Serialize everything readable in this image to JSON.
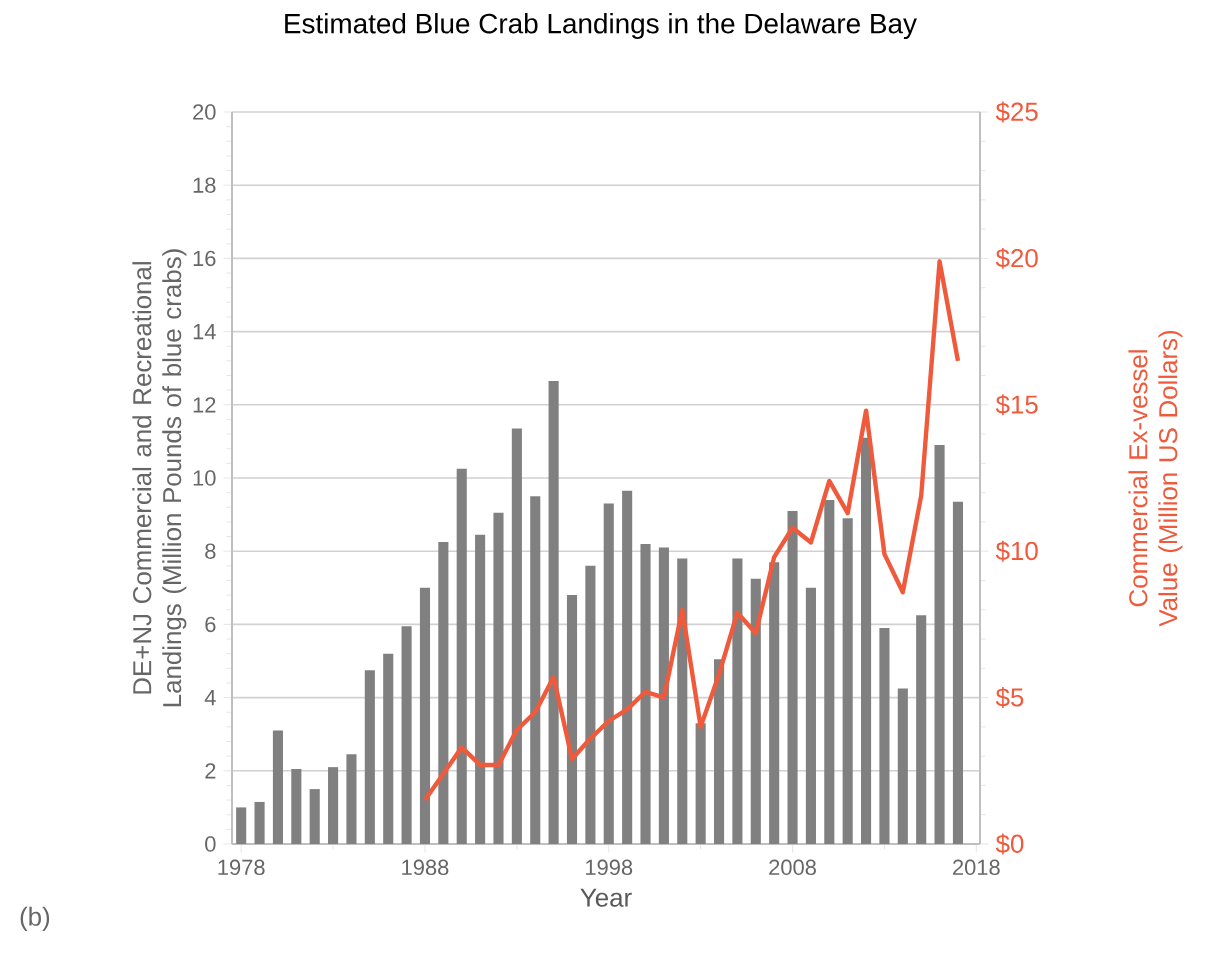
{
  "chart_data": {
    "type": "bar",
    "title": "Estimated Blue Crab Landings in the Delaware Bay",
    "xlabel": "Year",
    "ylabel": "DE+NJ Commercial and Recreational Landings (Million Pounds of blue crabs)",
    "y2label": "Commercial Ex-vessel Value (Million US Dollars)",
    "annotations": [
      "(b)"
    ],
    "x": [
      1978,
      1979,
      1980,
      1981,
      1982,
      1983,
      1984,
      1985,
      1986,
      1987,
      1988,
      1989,
      1990,
      1991,
      1992,
      1993,
      1994,
      1995,
      1996,
      1997,
      1998,
      1999,
      2000,
      2001,
      2002,
      2003,
      2004,
      2005,
      2006,
      2007,
      2008,
      2009,
      2010,
      2011,
      2012,
      2013,
      2014,
      2015,
      2016,
      2017
    ],
    "series": [
      {
        "color": "#808080",
        "values": [
          1.0,
          1.15,
          3.1,
          2.05,
          1.5,
          2.1,
          2.45,
          4.75,
          5.2,
          5.95,
          7.0,
          8.25,
          10.25,
          8.45,
          9.05,
          11.35,
          9.5,
          12.65,
          6.8,
          7.6,
          9.3,
          9.65,
          8.2,
          8.1,
          7.8,
          3.3,
          5.05,
          7.8,
          7.25,
          7.7,
          9.1,
          7.0,
          9.4,
          8.9,
          11.1,
          5.9,
          4.25,
          6.25,
          10.9,
          9.35
        ]
      },
      {
        "type": "line",
        "axis": "y2",
        "color": "#ef5a3c",
        "values": [
          null,
          null,
          null,
          null,
          null,
          null,
          null,
          null,
          null,
          null,
          1.5,
          2.4,
          3.3,
          2.7,
          2.7,
          3.9,
          4.5,
          5.7,
          2.9,
          3.6,
          4.2,
          4.6,
          5.2,
          5.0,
          8.0,
          4.0,
          5.8,
          7.9,
          7.2,
          9.8,
          10.8,
          10.3,
          12.4,
          11.3,
          14.8,
          9.9,
          8.6,
          11.9,
          19.9,
          16.5
        ]
      }
    ],
    "xlim": [
      1977.5,
      2018.2
    ],
    "xticks": [
      1978,
      1988,
      1998,
      2008,
      2018
    ],
    "ylim": [
      0,
      20
    ],
    "yticks": [
      0,
      2,
      4,
      6,
      8,
      10,
      12,
      14,
      16,
      18,
      20
    ],
    "y2lim": [
      0,
      25
    ],
    "y2ticks": [
      {
        "value": 0,
        "label": "$0"
      },
      {
        "value": 5,
        "label": "$5"
      },
      {
        "value": 10,
        "label": "$10"
      },
      {
        "value": 15,
        "label": "$15"
      },
      {
        "value": 20,
        "label": "$20"
      },
      {
        "value": 25,
        "label": "$25"
      }
    ],
    "grid": "y"
  }
}
